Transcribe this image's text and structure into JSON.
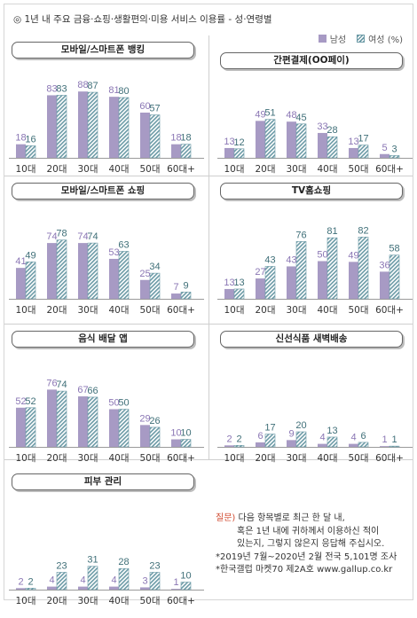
{
  "title": "◎ 1년 내 주요 금융·쇼핑·생활편의·미용 서비스 이용률 - 성·연령별",
  "legend": {
    "male": "남성",
    "female": "여성 (%)"
  },
  "colors": {
    "male": "#a79ac4",
    "female": "#6b9aa6",
    "label_male": "#8a76b4",
    "label_female": "#3f6f78",
    "axis": "#9a9a9a",
    "note_red": "#d04a2f"
  },
  "note": {
    "label": "질문)",
    "line1": " 다음 항목별로 최근 한 달 내,",
    "line2": "혹은 1년 내에 귀하께서 이용하신 적이",
    "line3": "있는지, 그렇지 않은지 응답해 주십시오.",
    "line4": "*2019년 7월~2020년 2월 전국 5,101명 조사",
    "line5": "*한국갤럽 마켓70 제2A호 www.gallup.co.kr"
  },
  "chart_data": [
    {
      "type": "bar",
      "title": "모바일/스마트폰 뱅킹",
      "categories": [
        "10대",
        "20대",
        "30대",
        "40대",
        "50대",
        "60대+"
      ],
      "series": [
        {
          "name": "남성",
          "values": [
            18,
            83,
            88,
            81,
            60,
            18
          ]
        },
        {
          "name": "여성",
          "values": [
            16,
            83,
            87,
            80,
            57,
            18
          ]
        }
      ]
    },
    {
      "type": "bar",
      "title": "간편결제(OO페이)",
      "categories": [
        "10대",
        "20대",
        "30대",
        "40대",
        "50대",
        "60대+"
      ],
      "series": [
        {
          "name": "남성",
          "values": [
            13,
            49,
            48,
            33,
            13,
            5
          ]
        },
        {
          "name": "여성",
          "values": [
            12,
            51,
            45,
            28,
            17,
            3
          ]
        }
      ]
    },
    {
      "type": "bar",
      "title": "모바일/스마트폰 쇼핑",
      "categories": [
        "10대",
        "20대",
        "30대",
        "40대",
        "50대",
        "60대+"
      ],
      "series": [
        {
          "name": "남성",
          "values": [
            41,
            74,
            74,
            53,
            25,
            7
          ]
        },
        {
          "name": "여성",
          "values": [
            49,
            78,
            74,
            63,
            34,
            9
          ]
        }
      ]
    },
    {
      "type": "bar",
      "title": "TV홈쇼핑",
      "categories": [
        "10대",
        "20대",
        "30대",
        "40대",
        "50대",
        "60대+"
      ],
      "series": [
        {
          "name": "남성",
          "values": [
            13,
            27,
            43,
            50,
            49,
            36
          ]
        },
        {
          "name": "여성",
          "values": [
            13,
            43,
            76,
            81,
            82,
            58
          ]
        }
      ]
    },
    {
      "type": "bar",
      "title": "음식 배달 앱",
      "categories": [
        "10대",
        "20대",
        "30대",
        "40대",
        "50대",
        "60대+"
      ],
      "series": [
        {
          "name": "남성",
          "values": [
            52,
            76,
            67,
            50,
            29,
            10
          ]
        },
        {
          "name": "여성",
          "values": [
            52,
            74,
            66,
            50,
            26,
            10
          ]
        }
      ]
    },
    {
      "type": "bar",
      "title": "신선식품 새벽배송",
      "categories": [
        "10대",
        "20대",
        "30대",
        "40대",
        "50대",
        "60대+"
      ],
      "series": [
        {
          "name": "남성",
          "values": [
            2,
            6,
            9,
            4,
            4,
            1
          ]
        },
        {
          "name": "여성",
          "values": [
            2,
            17,
            20,
            13,
            6,
            1
          ]
        }
      ]
    },
    {
      "type": "bar",
      "title": "피부 관리",
      "categories": [
        "10대",
        "20대",
        "30대",
        "40대",
        "50대",
        "60대+"
      ],
      "series": [
        {
          "name": "남성",
          "values": [
            2,
            4,
            4,
            4,
            3,
            1
          ]
        },
        {
          "name": "여성",
          "values": [
            2,
            23,
            31,
            28,
            23,
            10
          ]
        }
      ]
    }
  ]
}
